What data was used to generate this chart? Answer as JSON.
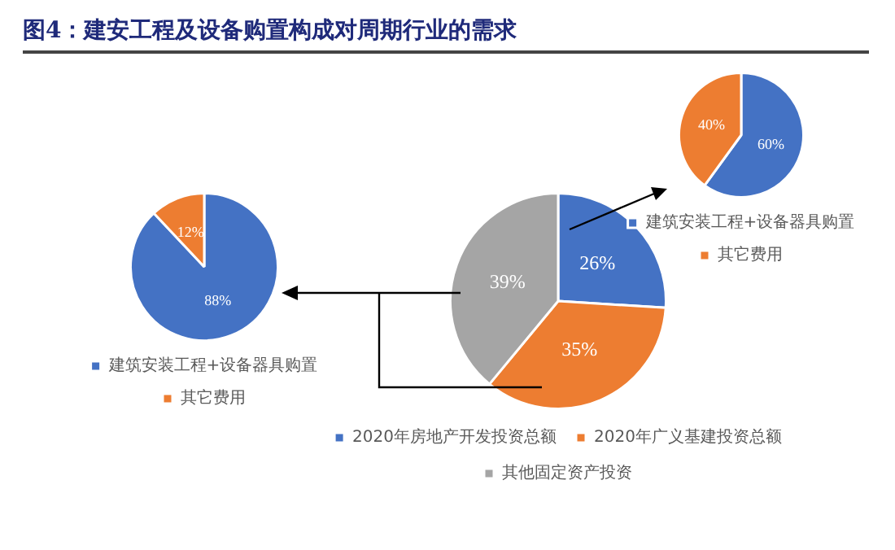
{
  "chart_data": [
    {
      "type": "pie",
      "title": "图4：建安工程及设备购置构成对周期行业的需求",
      "categories": [
        "2020年房地产开发投资总额",
        "2020年广义基建投资总额",
        "其他固定资产投资"
      ],
      "values": [
        26,
        35,
        39
      ],
      "colors": [
        "#4472c4",
        "#ed7d31",
        "#a5a5a5"
      ],
      "value_labels": [
        "26%",
        "35%",
        "39%"
      ],
      "legend": "bottom"
    },
    {
      "type": "pie",
      "categories": [
        "建筑安装工程+设备器具购置",
        "其它费用"
      ],
      "values": [
        88,
        12
      ],
      "colors": [
        "#4472c4",
        "#ed7d31"
      ],
      "value_labels": [
        "88%",
        "12%"
      ],
      "legend": "bottom"
    },
    {
      "type": "pie",
      "categories": [
        "建筑安装工程+设备器具购置",
        "其它费用"
      ],
      "values": [
        60,
        40
      ],
      "colors": [
        "#4472c4",
        "#ed7d31"
      ],
      "value_labels": [
        "60%",
        "40%"
      ],
      "legend": "bottom"
    }
  ]
}
